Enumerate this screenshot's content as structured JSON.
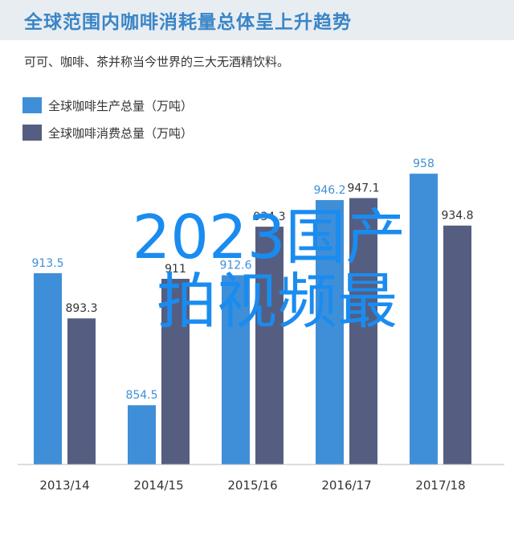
{
  "header": {
    "title": "全球范围内咖啡消耗量总体呈上升趋势",
    "subtitle": "可可、咖啡、茶并称当今世界的三大无酒精饮料。"
  },
  "overlay": {
    "line1": "2023国产",
    "line2": "拍视频最"
  },
  "colors": {
    "production": "#3f8fd8",
    "consumption": "#555e80",
    "title_bar": "#e8edf2"
  },
  "chart_data": {
    "type": "bar",
    "title": "全球范围内咖啡消耗量总体呈上升趋势",
    "categories": [
      "2013/14",
      "2014/15",
      "2015/16",
      "2016/17",
      "2017/18"
    ],
    "series": [
      {
        "name": "全球咖啡生产总量（万吨）",
        "values": [
          913.5,
          854.5,
          912.6,
          946.2,
          958
        ],
        "color": "#3f8fd8"
      },
      {
        "name": "全球咖啡消费总量（万吨）",
        "values": [
          893.3,
          911,
          934.3,
          947.1,
          934.8
        ],
        "color": "#555e80"
      }
    ],
    "value_labels": [
      [
        "913.5",
        "854.5",
        "912.6",
        "946.2",
        "958"
      ],
      [
        "893.3",
        "911",
        "934.3",
        "947.1",
        "934.8"
      ]
    ],
    "ylim": [
      828,
      962
    ],
    "legend": "top-left",
    "grid": false
  }
}
